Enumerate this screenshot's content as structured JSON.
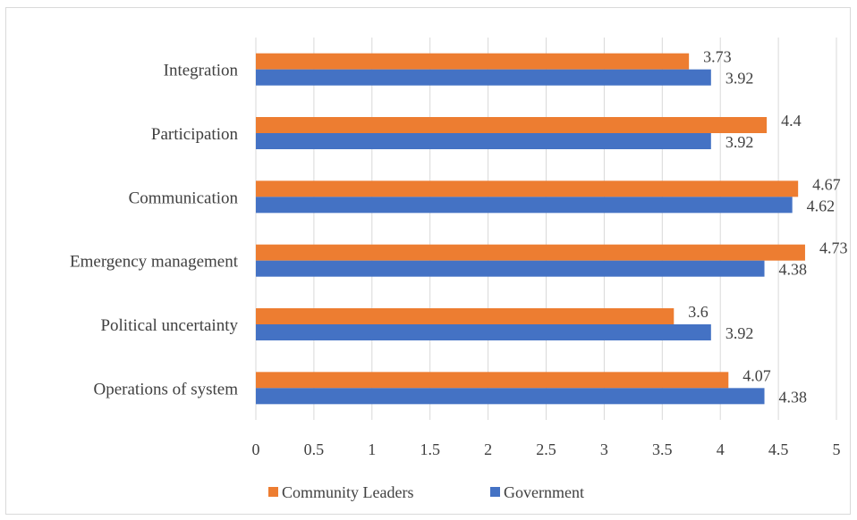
{
  "chart_data": {
    "type": "bar",
    "orientation": "horizontal",
    "categories": [
      "Operations of system",
      "Political uncertainty",
      "Emergency management",
      "Communication",
      "Participation",
      "Integration"
    ],
    "series": [
      {
        "name": "Community Leaders",
        "color": "#ED7D31",
        "values": [
          4.07,
          3.6,
          4.73,
          4.67,
          4.4,
          3.73
        ],
        "labels": [
          "4.07",
          "3.6",
          "4.73",
          "4.67",
          "4.4",
          "3.73"
        ]
      },
      {
        "name": "Government",
        "color": "#4472C4",
        "values": [
          4.38,
          3.92,
          4.38,
          4.62,
          3.92,
          3.92
        ],
        "labels": [
          "4.38",
          "3.92",
          "4.38",
          "4.62",
          "3.92",
          "3.92"
        ]
      }
    ],
    "xlim": [
      0,
      5
    ],
    "xticks": [
      "0",
      "0.5",
      "1",
      "1.5",
      "2",
      "2.5",
      "3",
      "3.5",
      "4",
      "4.5",
      "5"
    ],
    "grid": "vertical",
    "legend_position": "bottom"
  }
}
